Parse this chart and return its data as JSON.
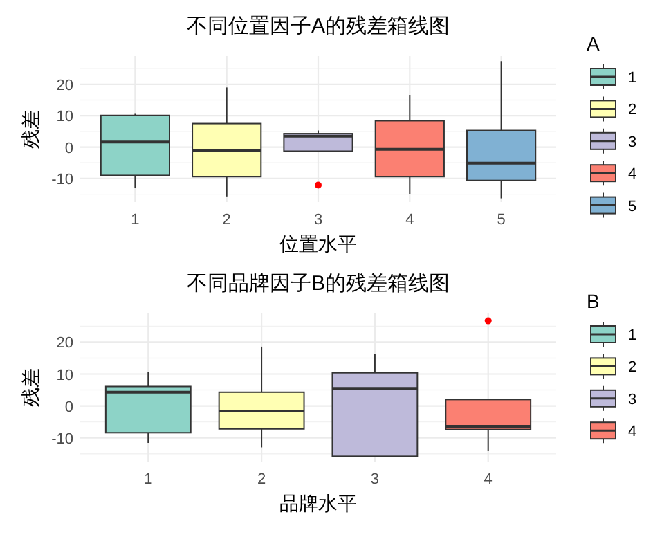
{
  "chart_data": [
    {
      "type": "box",
      "title": "不同位置因子A的残差箱线图",
      "xlabel": "位置水平",
      "ylabel": "残差",
      "legend_title": "A",
      "legend": "right",
      "grid": true,
      "categories": [
        "1",
        "2",
        "3",
        "4",
        "5"
      ],
      "ylim": [
        -17.5,
        29
      ],
      "yticks": [
        -10,
        0,
        10,
        20
      ],
      "series": [
        {
          "name": "1",
          "color": "#8dd3c7",
          "boxes": [
            {
              "low": -13.1,
              "q1": -9.0,
              "median": 1.6,
              "q3": 10.1,
              "high": 10.6
            },
            null,
            null,
            null,
            null
          ]
        },
        {
          "name": "2",
          "color": "#ffffb3",
          "boxes": [
            null,
            {
              "low": -15.7,
              "q1": -9.4,
              "median": -1.2,
              "q3": 7.5,
              "high": 19.0
            },
            null,
            null,
            null
          ]
        },
        {
          "name": "3",
          "color": "#bebada",
          "boxes": [
            null,
            null,
            {
              "low": -1.3,
              "q1": -1.3,
              "median": 3.5,
              "q3": 4.3,
              "high": 5.3,
              "outliers": [
                -12.1
              ]
            },
            null,
            null
          ]
        },
        {
          "name": "4",
          "color": "#fb8072",
          "boxes": [
            null,
            null,
            null,
            {
              "low": -14.9,
              "q1": -9.4,
              "median": -0.7,
              "q3": 8.4,
              "high": 16.6
            },
            null
          ]
        },
        {
          "name": "5",
          "color": "#80b1d3",
          "boxes": [
            null,
            null,
            null,
            null,
            {
              "low": -16.3,
              "q1": -10.6,
              "median": -5.1,
              "q3": 5.3,
              "high": 27.4
            }
          ]
        }
      ]
    },
    {
      "type": "box",
      "title": "不同品牌因子B的残差箱线图",
      "xlabel": "品牌水平",
      "ylabel": "残差",
      "legend_title": "B",
      "legend": "right",
      "grid": true,
      "categories": [
        "1",
        "2",
        "3",
        "4"
      ],
      "ylim": [
        -17.5,
        29
      ],
      "yticks": [
        -10,
        0,
        10,
        20
      ],
      "series": [
        {
          "name": "1",
          "color": "#8dd3c7",
          "boxes": [
            {
              "low": -11.6,
              "q1": -8.4,
              "median": 4.3,
              "q3": 6.1,
              "high": 10.6
            },
            null,
            null,
            null
          ]
        },
        {
          "name": "2",
          "color": "#ffffb3",
          "boxes": [
            null,
            {
              "low": -13.0,
              "q1": -7.2,
              "median": -1.6,
              "q3": 4.3,
              "high": 18.6
            },
            null,
            null
          ]
        },
        {
          "name": "3",
          "color": "#bebada",
          "boxes": [
            null,
            null,
            {
              "low": -15.8,
              "q1": -15.8,
              "median": 5.5,
              "q3": 10.4,
              "high": 16.4
            },
            null
          ]
        },
        {
          "name": "4",
          "color": "#fb8072",
          "boxes": [
            null,
            null,
            null,
            {
              "low": -14.2,
              "q1": -7.4,
              "median": -6.4,
              "q3": 2.0,
              "high": 2.0,
              "outliers": [
                26.7
              ]
            }
          ]
        }
      ]
    }
  ]
}
